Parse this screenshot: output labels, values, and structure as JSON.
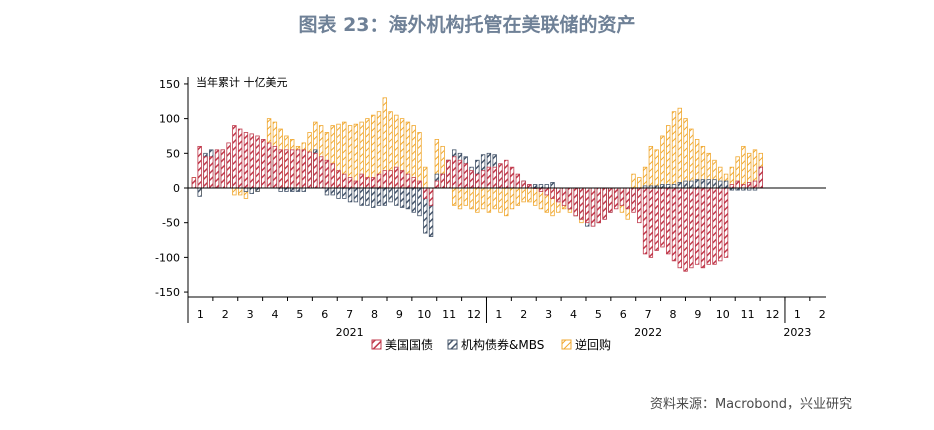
{
  "title": "图表 23：海外机构托管在美联储的资产",
  "source": "资料来源：Macrobond，兴业研究",
  "chart_data": {
    "type": "bar",
    "unit_label": "当年累计  十亿美元",
    "ylim": [
      -160,
      160
    ],
    "yticks": [
      150,
      100,
      50,
      0,
      -50,
      -100,
      -150
    ],
    "month_labels": [
      "1",
      "2",
      "3",
      "4",
      "5",
      "6",
      "7",
      "8",
      "9",
      "10",
      "11",
      "12",
      "1",
      "2",
      "3",
      "4",
      "5",
      "6",
      "7",
      "8",
      "9",
      "10",
      "11",
      "12",
      "1",
      "2"
    ],
    "year_labels": [
      {
        "label": "2021",
        "month_index": 6.5
      },
      {
        "label": "2022",
        "month_index": 18.5
      },
      {
        "label": "2023",
        "month_index": 24.5
      }
    ],
    "weeks_per_month": 4.3,
    "colors": {
      "treasury": "#c0394b",
      "agency": "#44546a",
      "repo": "#f0a830"
    },
    "series": [
      {
        "name": "美国国债",
        "key": "treasury",
        "values": [
          15,
          60,
          45,
          45,
          55,
          55,
          65,
          90,
          85,
          80,
          78,
          75,
          70,
          65,
          60,
          55,
          55,
          55,
          55,
          55,
          52,
          50,
          45,
          40,
          35,
          25,
          20,
          15,
          10,
          20,
          15,
          15,
          20,
          25,
          25,
          30,
          25,
          20,
          15,
          10,
          -15,
          -25,
          10,
          20,
          40,
          45,
          40,
          35,
          25,
          20,
          25,
          30,
          30,
          35,
          40,
          30,
          20,
          10,
          5,
          0,
          -5,
          -10,
          -15,
          -20,
          -25,
          -30,
          -40,
          -45,
          -50,
          -55,
          -50,
          -45,
          -35,
          -30,
          -25,
          -30,
          -35,
          -50,
          -95,
          -100,
          -90,
          -85,
          -95,
          -105,
          -115,
          -120,
          -115,
          -110,
          -115,
          -110,
          -110,
          -105,
          -100,
          5,
          10,
          5,
          8,
          10,
          30
        ]
      },
      {
        "name": "机构债券&MBS",
        "key": "agency",
        "values": [
          10,
          -12,
          50,
          55,
          48,
          55,
          50,
          20,
          10,
          -5,
          -8,
          -5,
          45,
          60,
          40,
          -5,
          -5,
          -5,
          -5,
          -5,
          40,
          55,
          40,
          -10,
          -10,
          -15,
          -15,
          -20,
          -20,
          -25,
          -25,
          -28,
          -25,
          -25,
          -20,
          -25,
          -28,
          -30,
          -35,
          -40,
          -65,
          -70,
          20,
          20,
          40,
          55,
          50,
          45,
          30,
          40,
          48,
          50,
          48,
          25,
          20,
          10,
          5,
          10,
          5,
          5,
          5,
          5,
          8,
          -5,
          -10,
          -30,
          -40,
          -45,
          -55,
          -55,
          -50,
          -45,
          -35,
          -25,
          -15,
          -20,
          -25,
          -10,
          3,
          3,
          3,
          5,
          5,
          5,
          8,
          10,
          10,
          12,
          12,
          12,
          12,
          10,
          10,
          -3,
          -3,
          -3,
          -3,
          -3,
          30
        ]
      },
      {
        "name": "逆回购",
        "key": "repo",
        "values": [
          15,
          -10,
          20,
          25,
          30,
          20,
          30,
          -10,
          -10,
          -15,
          -5,
          -5,
          55,
          100,
          95,
          85,
          75,
          70,
          60,
          65,
          80,
          95,
          90,
          80,
          90,
          92,
          95,
          90,
          92,
          95,
          100,
          105,
          110,
          130,
          110,
          105,
          100,
          95,
          90,
          80,
          30,
          -10,
          70,
          60,
          40,
          -25,
          -30,
          -25,
          -30,
          -35,
          -30,
          -35,
          -30,
          -35,
          -40,
          -30,
          -25,
          -20,
          -20,
          -25,
          -30,
          -35,
          -40,
          -35,
          -30,
          -35,
          -40,
          -50,
          -50,
          -45,
          -50,
          -40,
          -30,
          -25,
          -35,
          -45,
          20,
          15,
          30,
          60,
          55,
          75,
          90,
          110,
          115,
          100,
          85,
          70,
          60,
          50,
          40,
          30,
          20,
          30,
          45,
          60,
          50,
          55,
          50
        ]
      }
    ]
  }
}
